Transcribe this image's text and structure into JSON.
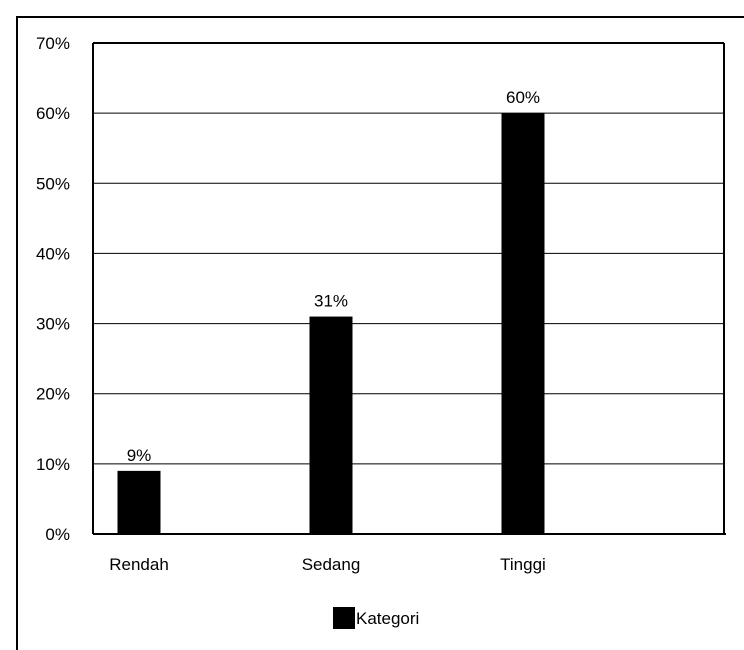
{
  "chart_data": {
    "type": "bar",
    "title": "",
    "xlabel": "",
    "ylabel": "",
    "categories": [
      "Rendah",
      "Sedang",
      "Tinggi"
    ],
    "series": [
      {
        "name": "Kategori",
        "values": [
          9,
          31,
          60
        ],
        "data_labels": [
          "9%",
          "31%",
          "60%"
        ],
        "color": "#000000"
      }
    ],
    "yticks": [
      0,
      10,
      20,
      30,
      40,
      50,
      60,
      70
    ],
    "ytick_labels": [
      "0%",
      "10%",
      "20%",
      "30%",
      "40%",
      "50%",
      "60%",
      "70%"
    ],
    "ylim": [
      0,
      70
    ],
    "y_unit": "%",
    "grid": "horizontal",
    "legend": "bottom-center"
  }
}
